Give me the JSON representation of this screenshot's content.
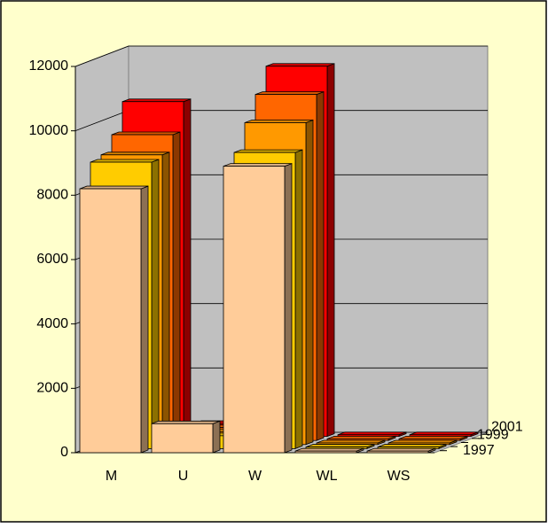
{
  "chart_data": {
    "type": "bar3d",
    "categories": [
      "M",
      "U",
      "W",
      "WL",
      "WS"
    ],
    "series": [
      {
        "name": "1997",
        "color": "#FFCC99",
        "values": [
          8200,
          900,
          8900,
          50,
          50
        ]
      },
      {
        "name": null,
        "color": "#FFCC00",
        "values": [
          8900,
          400,
          9200,
          50,
          50
        ]
      },
      {
        "name": "1999",
        "color": "#FF9900",
        "values": [
          9000,
          400,
          10000,
          50,
          50
        ]
      },
      {
        "name": null,
        "color": "#FF6600",
        "values": [
          9500,
          400,
          10750,
          50,
          50
        ]
      },
      {
        "name": "2001",
        "color": "#FF0000",
        "values": [
          10400,
          400,
          11500,
          50,
          50
        ]
      }
    ],
    "ylim": [
      0,
      12000
    ],
    "yticks": [
      0,
      2000,
      4000,
      6000,
      8000,
      10000,
      12000
    ],
    "grid": true
  }
}
